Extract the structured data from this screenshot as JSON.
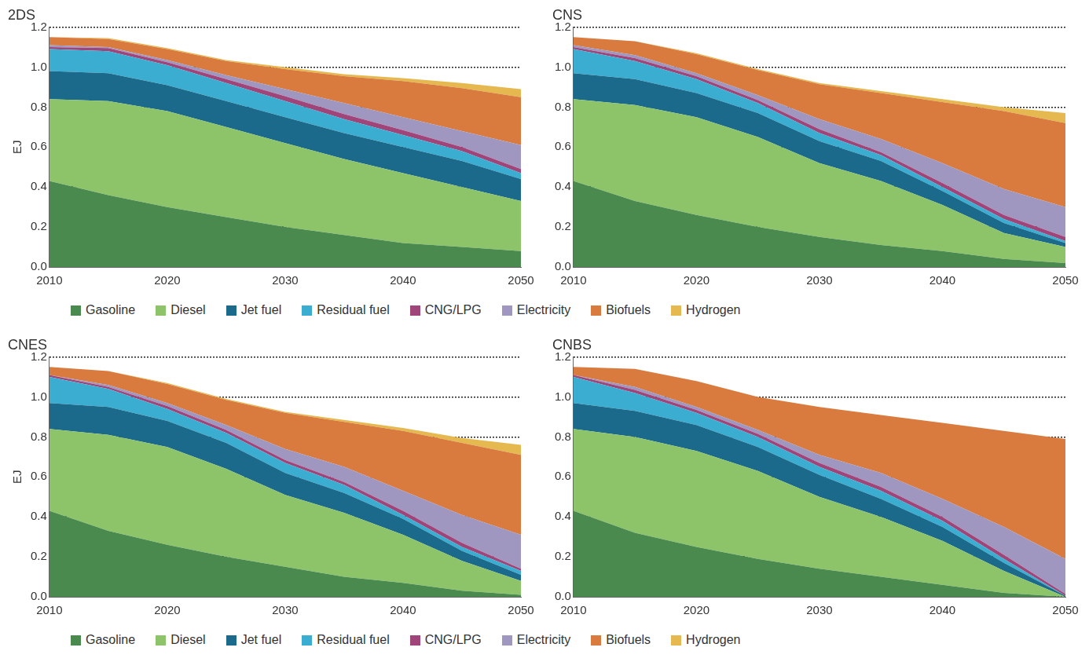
{
  "chart_data": [
    {
      "type": "line",
      "title": "2DS",
      "y_label": "EJ",
      "stacked": true,
      "grid": true,
      "legend": "bottom",
      "x": [
        2010,
        2015,
        2020,
        2025,
        2030,
        2035,
        2040,
        2045,
        2050
      ],
      "xlim": [
        2010,
        2050
      ],
      "xticks": [
        2010,
        2020,
        2030,
        2040,
        2050
      ],
      "ylim": [
        0,
        1.2
      ],
      "yticks": [
        {
          "value": 0,
          "label": "0.0"
        },
        {
          "value": 0.2,
          "label": "0.2"
        },
        {
          "value": 0.4,
          "label": "0.4"
        },
        {
          "value": 0.6,
          "label": "0.6"
        },
        {
          "value": 0.8,
          "label": "0.8"
        },
        {
          "value": 1.0,
          "label": "1.0"
        },
        {
          "value": 1.2,
          "label": "1.2"
        }
      ],
      "series": [
        {
          "name": "Gasoline",
          "color": "#4a8a4e",
          "values": [
            0.43,
            0.36,
            0.3,
            0.25,
            0.2,
            0.16,
            0.12,
            0.1,
            0.08
          ]
        },
        {
          "name": "Diesel",
          "color": "#8dc46a",
          "values": [
            0.41,
            0.47,
            0.48,
            0.45,
            0.42,
            0.38,
            0.35,
            0.3,
            0.25
          ]
        },
        {
          "name": "Jet fuel",
          "color": "#1b6a8c",
          "values": [
            0.14,
            0.14,
            0.13,
            0.13,
            0.13,
            0.13,
            0.13,
            0.13,
            0.11
          ]
        },
        {
          "name": "Residual fuel",
          "color": "#3badd0",
          "values": [
            0.11,
            0.11,
            0.1,
            0.09,
            0.08,
            0.07,
            0.06,
            0.05,
            0.03
          ]
        },
        {
          "name": "CNG/LPG",
          "color": "#a0457a",
          "values": [
            0.01,
            0.015,
            0.015,
            0.02,
            0.025,
            0.025,
            0.025,
            0.02,
            0.02
          ]
        },
        {
          "name": "Electricity",
          "color": "#9f97c0",
          "values": [
            0.01,
            0.005,
            0.01,
            0.02,
            0.035,
            0.055,
            0.065,
            0.08,
            0.12
          ]
        },
        {
          "name": "Biofuels",
          "color": "#d97b3e",
          "values": [
            0.04,
            0.04,
            0.055,
            0.07,
            0.1,
            0.135,
            0.18,
            0.215,
            0.24
          ]
        },
        {
          "name": "Hydrogen",
          "color": "#e6b850",
          "values": [
            0,
            0.005,
            0.005,
            0.005,
            0.01,
            0.01,
            0.015,
            0.025,
            0.04
          ]
        }
      ]
    },
    {
      "type": "line",
      "title": "CNS",
      "stacked": true,
      "grid": true,
      "x": [
        2010,
        2015,
        2020,
        2025,
        2030,
        2035,
        2040,
        2045,
        2050
      ],
      "xlim": [
        2010,
        2050
      ],
      "xticks": [
        2010,
        2020,
        2030,
        2040,
        2050
      ],
      "ylim": [
        0,
        1.2
      ],
      "yticks": [
        {
          "value": 0,
          "label": "0.0"
        },
        {
          "value": 0.2,
          "label": "0.2"
        },
        {
          "value": 0.4,
          "label": "0.4"
        },
        {
          "value": 0.6,
          "label": "0.6"
        },
        {
          "value": 0.8,
          "label": "0.8"
        },
        {
          "value": 1.0,
          "label": "1.0"
        },
        {
          "value": 1.2,
          "label": "1.2"
        }
      ],
      "series": [
        {
          "name": "Gasoline",
          "color": "#4a8a4e",
          "values": [
            0.43,
            0.33,
            0.26,
            0.2,
            0.15,
            0.11,
            0.08,
            0.04,
            0.02
          ]
        },
        {
          "name": "Diesel",
          "color": "#8dc46a",
          "values": [
            0.41,
            0.48,
            0.49,
            0.45,
            0.37,
            0.32,
            0.23,
            0.13,
            0.08
          ]
        },
        {
          "name": "Jet fuel",
          "color": "#1b6a8c",
          "values": [
            0.13,
            0.13,
            0.12,
            0.12,
            0.11,
            0.1,
            0.07,
            0.05,
            0.02
          ]
        },
        {
          "name": "Residual fuel",
          "color": "#3badd0",
          "values": [
            0.12,
            0.09,
            0.07,
            0.05,
            0.04,
            0.03,
            0.02,
            0.02,
            0.01
          ]
        },
        {
          "name": "CNG/LPG",
          "color": "#a0457a",
          "values": [
            0.01,
            0.015,
            0.015,
            0.015,
            0.02,
            0.015,
            0.02,
            0.02,
            0.02
          ]
        },
        {
          "name": "Electricity",
          "color": "#9f97c0",
          "values": [
            0.01,
            0.015,
            0.015,
            0.025,
            0.05,
            0.065,
            0.1,
            0.13,
            0.15
          ]
        },
        {
          "name": "Biofuels",
          "color": "#d97b3e",
          "values": [
            0.04,
            0.07,
            0.095,
            0.125,
            0.175,
            0.23,
            0.305,
            0.39,
            0.42
          ]
        },
        {
          "name": "Hydrogen",
          "color": "#e6b850",
          "values": [
            0,
            0,
            0.005,
            0.005,
            0.005,
            0.01,
            0.015,
            0.02,
            0.05
          ]
        }
      ]
    },
    {
      "type": "line",
      "title": "CNES",
      "y_label": "EJ",
      "stacked": true,
      "grid": true,
      "legend": "bottom",
      "x": [
        2010,
        2015,
        2020,
        2025,
        2030,
        2035,
        2040,
        2045,
        2050
      ],
      "xlim": [
        2010,
        2050
      ],
      "xticks": [
        2010,
        2020,
        2030,
        2040,
        2050
      ],
      "ylim": [
        0,
        1.2
      ],
      "yticks": [
        {
          "value": 0,
          "label": "0.0"
        },
        {
          "value": 0.2,
          "label": "0.2"
        },
        {
          "value": 0.4,
          "label": "0.4"
        },
        {
          "value": 0.6,
          "label": "0.6"
        },
        {
          "value": 0.8,
          "label": "0.8"
        },
        {
          "value": 1.0,
          "label": "1.0"
        },
        {
          "value": 1.2,
          "label": "1.2"
        }
      ],
      "series": [
        {
          "name": "Gasoline",
          "color": "#4a8a4e",
          "values": [
            0.43,
            0.33,
            0.26,
            0.2,
            0.15,
            0.1,
            0.07,
            0.03,
            0.01
          ]
        },
        {
          "name": "Diesel",
          "color": "#8dc46a",
          "values": [
            0.41,
            0.48,
            0.49,
            0.44,
            0.36,
            0.32,
            0.24,
            0.15,
            0.07
          ]
        },
        {
          "name": "Jet fuel",
          "color": "#1b6a8c",
          "values": [
            0.13,
            0.14,
            0.13,
            0.13,
            0.11,
            0.1,
            0.08,
            0.05,
            0.03
          ]
        },
        {
          "name": "Residual fuel",
          "color": "#3badd0",
          "values": [
            0.13,
            0.09,
            0.06,
            0.05,
            0.05,
            0.04,
            0.02,
            0.02,
            0.02
          ]
        },
        {
          "name": "CNG/LPG",
          "color": "#a0457a",
          "values": [
            0.01,
            0.01,
            0.015,
            0.015,
            0.015,
            0.015,
            0.02,
            0.02,
            0.01
          ]
        },
        {
          "name": "Electricity",
          "color": "#9f97c0",
          "values": [
            0,
            0.01,
            0.015,
            0.025,
            0.055,
            0.075,
            0.1,
            0.14,
            0.17
          ]
        },
        {
          "name": "Biofuels",
          "color": "#d97b3e",
          "values": [
            0.04,
            0.07,
            0.095,
            0.125,
            0.18,
            0.225,
            0.3,
            0.36,
            0.4
          ]
        },
        {
          "name": "Hydrogen",
          "color": "#e6b850",
          "values": [
            0,
            0,
            0.005,
            0.005,
            0.005,
            0.01,
            0.015,
            0.025,
            0.05
          ]
        }
      ]
    },
    {
      "type": "line",
      "title": "CNBS",
      "stacked": true,
      "grid": true,
      "x": [
        2010,
        2015,
        2020,
        2025,
        2030,
        2035,
        2040,
        2045,
        2050
      ],
      "xlim": [
        2010,
        2050
      ],
      "xticks": [
        2010,
        2020,
        2030,
        2040,
        2050
      ],
      "ylim": [
        0,
        1.2
      ],
      "yticks": [
        {
          "value": 0,
          "label": "0.0"
        },
        {
          "value": 0.2,
          "label": "0.2"
        },
        {
          "value": 0.4,
          "label": "0.4"
        },
        {
          "value": 0.6,
          "label": "0.6"
        },
        {
          "value": 0.8,
          "label": "0.8"
        },
        {
          "value": 1.0,
          "label": "1.0"
        },
        {
          "value": 1.2,
          "label": "1.2"
        }
      ],
      "series": [
        {
          "name": "Gasoline",
          "color": "#4a8a4e",
          "values": [
            0.43,
            0.32,
            0.25,
            0.19,
            0.14,
            0.1,
            0.06,
            0.02,
            0
          ]
        },
        {
          "name": "Diesel",
          "color": "#8dc46a",
          "values": [
            0.41,
            0.48,
            0.48,
            0.44,
            0.36,
            0.3,
            0.22,
            0.11,
            0
          ]
        },
        {
          "name": "Jet fuel",
          "color": "#1b6a8c",
          "values": [
            0.13,
            0.13,
            0.13,
            0.12,
            0.11,
            0.09,
            0.07,
            0.04,
            0.005
          ]
        },
        {
          "name": "Residual fuel",
          "color": "#3badd0",
          "values": [
            0.13,
            0.09,
            0.06,
            0.05,
            0.04,
            0.04,
            0.03,
            0.02,
            0
          ]
        },
        {
          "name": "CNG/LPG",
          "color": "#a0457a",
          "values": [
            0.01,
            0.015,
            0.015,
            0.015,
            0.02,
            0.02,
            0.02,
            0.02,
            0.01
          ]
        },
        {
          "name": "Electricity",
          "color": "#9f97c0",
          "values": [
            0,
            0.015,
            0.015,
            0.02,
            0.04,
            0.07,
            0.09,
            0.14,
            0.175
          ]
        },
        {
          "name": "Biofuels",
          "color": "#d97b3e",
          "values": [
            0.04,
            0.09,
            0.13,
            0.165,
            0.24,
            0.29,
            0.38,
            0.48,
            0.6
          ]
        },
        {
          "name": "Hydrogen",
          "color": "#e6b850",
          "values": [
            0,
            0,
            0,
            0,
            0,
            0,
            0,
            0,
            0
          ]
        }
      ]
    }
  ]
}
